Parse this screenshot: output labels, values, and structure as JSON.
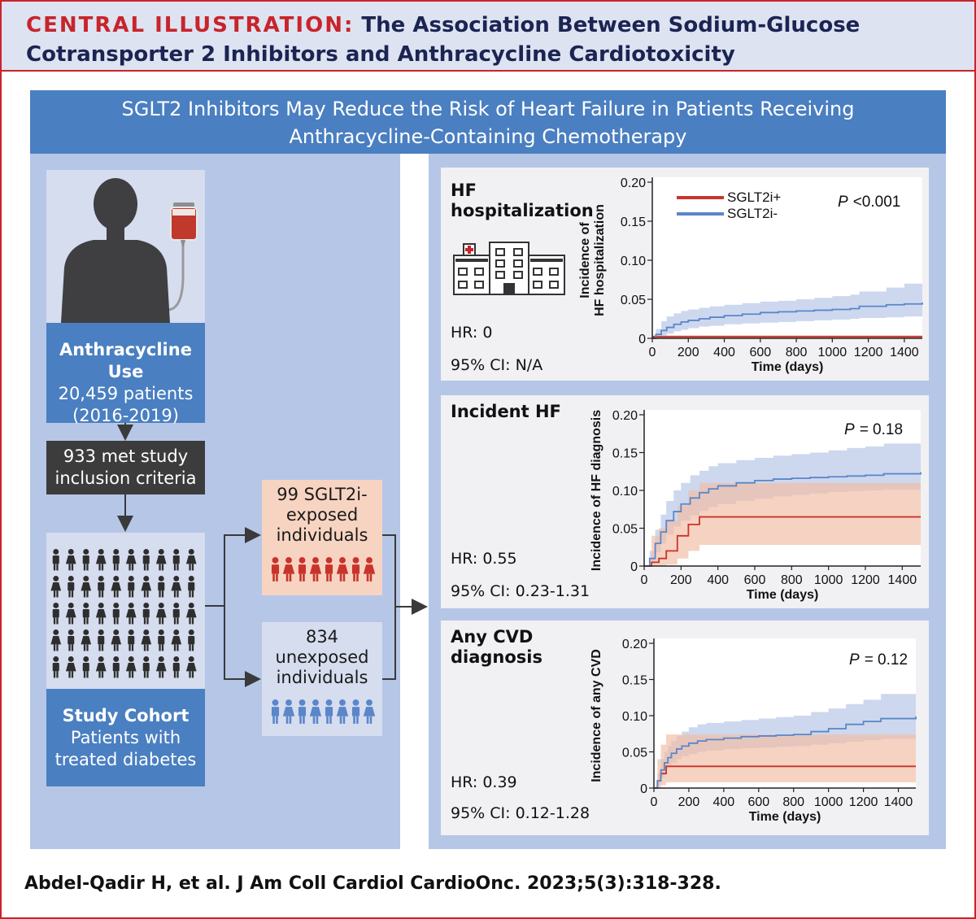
{
  "header": {
    "label": "CENTRAL ILLUSTRATION:",
    "title_line1": "The Association Between Sodium-Glucose",
    "title_line2": "Cotransporter 2 Inhibitors and Anthracycline Cardiotoxicity"
  },
  "banner": {
    "line1": "SGLT2 Inhibitors May Reduce the Risk of Heart Failure in Patients Receiving",
    "line2": "Anthracycline-Containing Chemotherapy"
  },
  "flow": {
    "anthracycline": {
      "title": "Anthracycline Use",
      "line2": "20,459 patients",
      "line3": "(2016-2019)"
    },
    "inclusion": {
      "line1": "933 met study",
      "line2": "inclusion criteria"
    },
    "cohort": {
      "title": "Study Cohort",
      "line2": "Patients with",
      "line3": "treated diabetes"
    },
    "exposed": {
      "line1": "99 SGLT2i-",
      "line2": "exposed",
      "line3": "individuals"
    },
    "unexposed": {
      "line1": "834",
      "line2": "unexposed",
      "line3": "individuals"
    }
  },
  "colors": {
    "sglt2_pos": "#c8342c",
    "sglt2_neg": "#5b86c9",
    "sglt2_pos_band": "#f1bfa6",
    "sglt2_neg_band": "#bccbe9",
    "overlap_band": "#b08aa7",
    "brand_red": "#c8242b",
    "navy": "#1b2452"
  },
  "citation": "Abdel-Qadir H, et al. J Am Coll Cardiol CardioOnc. 2023;5(3):318-328.",
  "chart_data": [
    {
      "type": "line",
      "panel_title_line1": "HF",
      "panel_title_line2": "hospitalization",
      "hr": "HR: 0",
      "ci": "95% CI: N/A",
      "p_label": "P",
      "p_value": "<0.001",
      "ylabel_line1": "Incidence of",
      "ylabel_line2": "HF hospitalization",
      "xlabel": "Time (days)",
      "xlim": [
        0,
        1500
      ],
      "ylim": [
        0,
        0.2
      ],
      "xticks": [
        "0",
        "200",
        "400",
        "600",
        "800",
        "1000",
        "1200",
        "1400"
      ],
      "yticks": [
        "0",
        "0.05",
        "0.10",
        "0.15",
        "0.20"
      ],
      "legend": [
        "SGLT2i+",
        "SGLT2i-"
      ],
      "series": [
        {
          "name": "SGLT2i+",
          "x": [
            0,
            1500
          ],
          "y": [
            0.002,
            0.002
          ],
          "lower": [
            0,
            0
          ],
          "upper": [
            0.004,
            0.004
          ]
        },
        {
          "name": "SGLT2i-",
          "x": [
            0,
            20,
            50,
            80,
            120,
            160,
            200,
            260,
            320,
            400,
            500,
            600,
            700,
            800,
            900,
            1000,
            1100,
            1150,
            1300,
            1400,
            1500
          ],
          "y": [
            0,
            0.005,
            0.01,
            0.014,
            0.018,
            0.021,
            0.023,
            0.025,
            0.027,
            0.029,
            0.031,
            0.033,
            0.034,
            0.035,
            0.036,
            0.037,
            0.038,
            0.041,
            0.043,
            0.044,
            0.046
          ],
          "lower": [
            0,
            0.001,
            0.003,
            0.006,
            0.009,
            0.011,
            0.013,
            0.015,
            0.016,
            0.018,
            0.019,
            0.02,
            0.021,
            0.022,
            0.023,
            0.024,
            0.025,
            0.026,
            0.027,
            0.028,
            0.028
          ],
          "upper": [
            0,
            0.012,
            0.022,
            0.028,
            0.032,
            0.035,
            0.037,
            0.039,
            0.041,
            0.043,
            0.045,
            0.047,
            0.048,
            0.05,
            0.052,
            0.054,
            0.056,
            0.06,
            0.065,
            0.07,
            0.074
          ]
        }
      ]
    },
    {
      "type": "line",
      "panel_title_line1": "Incident HF",
      "panel_title_line2": "",
      "hr": "HR: 0.55",
      "ci": "95% CI: 0.23-1.31",
      "p_label": "P",
      "p_value": "= 0.18",
      "ylabel_line1": "Incidence of HF diagnosis",
      "ylabel_line2": "",
      "xlabel": "Time (days)",
      "xlim": [
        0,
        1500
      ],
      "ylim": [
        0,
        0.2
      ],
      "xticks": [
        "0",
        "200",
        "400",
        "600",
        "800",
        "1000",
        "1200",
        "1400"
      ],
      "yticks": [
        "0",
        "0.05",
        "0.10",
        "0.15",
        "0.20"
      ],
      "legend": [],
      "series": [
        {
          "name": "SGLT2i+",
          "x": [
            0,
            40,
            80,
            120,
            180,
            240,
            300,
            1500
          ],
          "y": [
            0,
            0.005,
            0.01,
            0.02,
            0.04,
            0.055,
            0.065,
            0.065
          ],
          "lower": [
            0,
            0,
            0,
            0.002,
            0.01,
            0.02,
            0.028,
            0.028
          ],
          "upper": [
            0,
            0.04,
            0.05,
            0.06,
            0.08,
            0.1,
            0.11,
            0.12
          ]
        },
        {
          "name": "SGLT2i-",
          "x": [
            0,
            30,
            60,
            90,
            120,
            160,
            200,
            250,
            300,
            350,
            400,
            500,
            600,
            700,
            800,
            900,
            1000,
            1100,
            1200,
            1300,
            1500
          ],
          "y": [
            0,
            0.01,
            0.03,
            0.045,
            0.06,
            0.072,
            0.082,
            0.09,
            0.097,
            0.102,
            0.106,
            0.11,
            0.113,
            0.115,
            0.116,
            0.117,
            0.118,
            0.119,
            0.12,
            0.122,
            0.124
          ],
          "lower": [
            0,
            0.004,
            0.018,
            0.03,
            0.042,
            0.052,
            0.06,
            0.067,
            0.073,
            0.078,
            0.082,
            0.086,
            0.089,
            0.092,
            0.094,
            0.096,
            0.098,
            0.099,
            0.1,
            0.101,
            0.102
          ],
          "upper": [
            0,
            0.02,
            0.048,
            0.068,
            0.086,
            0.1,
            0.11,
            0.12,
            0.126,
            0.132,
            0.136,
            0.14,
            0.143,
            0.146,
            0.148,
            0.15,
            0.153,
            0.156,
            0.158,
            0.162,
            0.166
          ]
        }
      ]
    },
    {
      "type": "line",
      "panel_title_line1": "Any CVD",
      "panel_title_line2": "diagnosis",
      "hr": "HR: 0.39",
      "ci": "95% CI: 0.12-1.28",
      "p_label": "P",
      "p_value": "= 0.12",
      "ylabel_line1": "Incidence of any CVD",
      "ylabel_line2": "",
      "xlabel": "Time (days)",
      "xlim": [
        0,
        1500
      ],
      "ylim": [
        0,
        0.2
      ],
      "xticks": [
        "0",
        "200",
        "400",
        "600",
        "800",
        "1000",
        "1200",
        "1400"
      ],
      "yticks": [
        "0",
        "0.05",
        "0.10",
        "0.15",
        "0.20"
      ],
      "legend": [],
      "series": [
        {
          "name": "SGLT2i+",
          "x": [
            0,
            20,
            40,
            70,
            1500
          ],
          "y": [
            0,
            0.01,
            0.02,
            0.03,
            0.03
          ],
          "lower": [
            0,
            0,
            0.004,
            0.008,
            0.008
          ],
          "upper": [
            0,
            0.04,
            0.06,
            0.074,
            0.074
          ]
        },
        {
          "name": "SGLT2i-",
          "x": [
            0,
            20,
            40,
            60,
            80,
            100,
            130,
            160,
            200,
            250,
            300,
            400,
            500,
            600,
            700,
            800,
            900,
            1000,
            1100,
            1200,
            1300,
            1500
          ],
          "y": [
            0,
            0.01,
            0.025,
            0.035,
            0.042,
            0.048,
            0.054,
            0.058,
            0.062,
            0.065,
            0.067,
            0.069,
            0.071,
            0.072,
            0.073,
            0.074,
            0.078,
            0.082,
            0.088,
            0.092,
            0.096,
            0.099
          ],
          "lower": [
            0,
            0.004,
            0.015,
            0.024,
            0.03,
            0.035,
            0.04,
            0.044,
            0.047,
            0.05,
            0.052,
            0.054,
            0.055,
            0.056,
            0.057,
            0.058,
            0.06,
            0.062,
            0.064,
            0.066,
            0.068,
            0.069
          ],
          "upper": [
            0,
            0.02,
            0.04,
            0.05,
            0.058,
            0.065,
            0.072,
            0.078,
            0.084,
            0.088,
            0.09,
            0.092,
            0.094,
            0.096,
            0.098,
            0.1,
            0.105,
            0.11,
            0.116,
            0.122,
            0.13,
            0.135
          ]
        }
      ]
    }
  ]
}
